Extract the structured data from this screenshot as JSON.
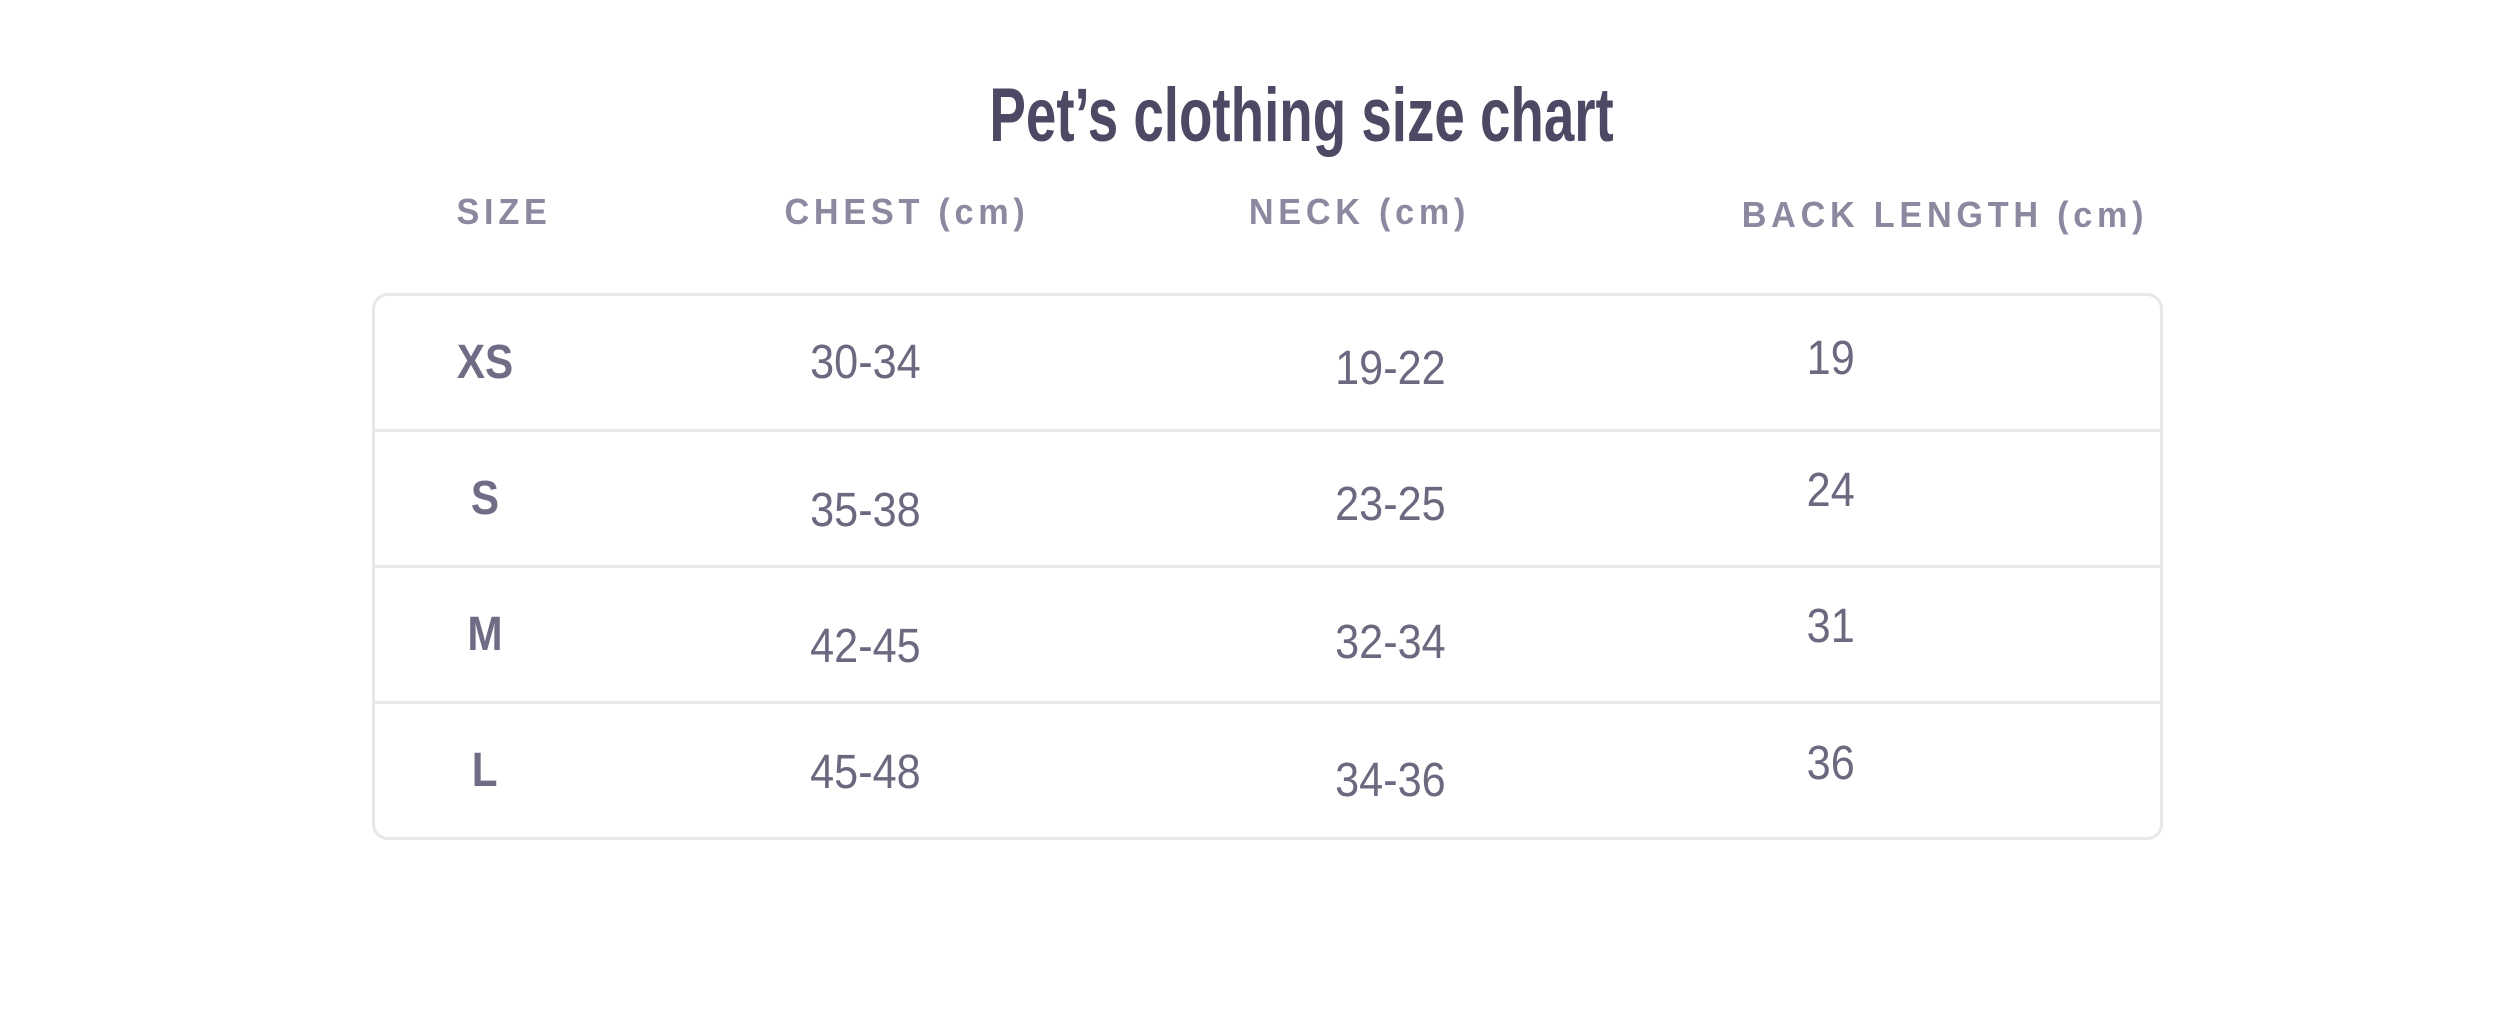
{
  "page": {
    "title": "Pet’s clothing size chart"
  },
  "chart_data": {
    "type": "table",
    "title": "Pet’s clothing size chart",
    "columns": [
      "SIZE",
      "CHEST (cm)",
      "NECK (cm)",
      "BACK LENGTH (cm)"
    ],
    "rows": [
      [
        "XS",
        "30-34",
        "19-22",
        "19"
      ],
      [
        "S",
        "35-38",
        "23-25",
        "24"
      ],
      [
        "M",
        "42-45",
        "32-34",
        "31"
      ],
      [
        "L",
        "45-48",
        "34-36",
        "36"
      ]
    ]
  },
  "table": {
    "headers": {
      "size": "SIZE",
      "chest": "CHEST (cm)",
      "neck": "NECK (cm)",
      "back": "BACK LENGTH (cm)"
    },
    "rows": [
      {
        "size": "XS",
        "chest": "30-34",
        "neck": "19-22",
        "back": "19"
      },
      {
        "size": "S",
        "chest": "35-38",
        "neck": "23-25",
        "back": "24"
      },
      {
        "size": "M",
        "chest": "42-45",
        "neck": "32-34",
        "back": "31"
      },
      {
        "size": "L",
        "chest": "45-48",
        "neck": "34-36",
        "back": "36"
      }
    ]
  },
  "colors": {
    "background": "#ffffff",
    "title": "#4b4963",
    "header_text": "#8b89a0",
    "size_text": "#6f6d85",
    "value_text": "#6b697f",
    "border": "#e8e8e8"
  }
}
